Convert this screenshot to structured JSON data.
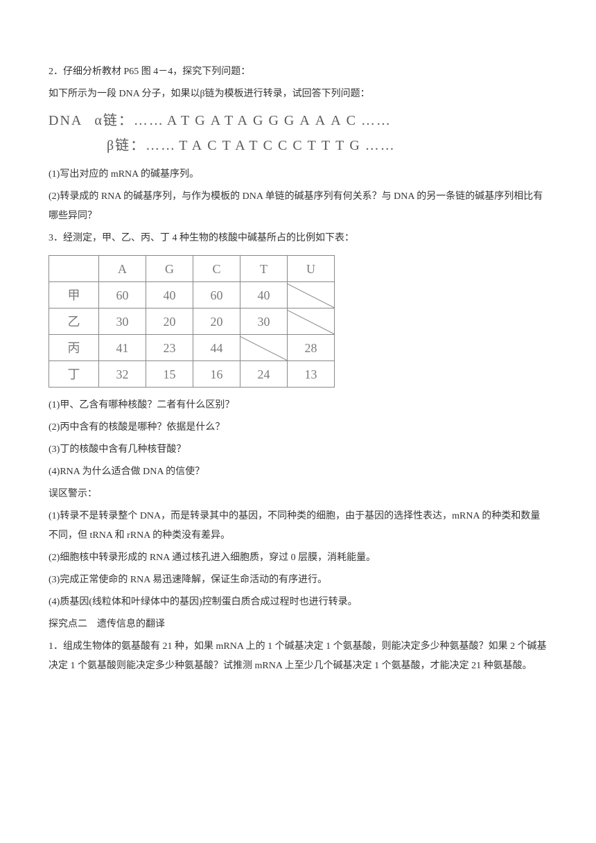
{
  "q2_intro": "2．仔细分析教材 P65 图 4－4，探究下列问题：",
  "q2_line2": "如下所示为一段 DNA 分子，如果以β链为模板进行转录，试回答下列问题：",
  "dna": {
    "label_prefix": "DNA",
    "alpha_label": "α链：……",
    "alpha_seq": "ATGATAGGGAAAC",
    "alpha_suffix": "……",
    "beta_label": "β链：……",
    "beta_seq": "TACTATCCCTTTG",
    "beta_suffix": "……"
  },
  "q2_sub1": "(1)写出对应的 mRNA 的碱基序列。",
  "q2_sub2": "(2)转录成的 RNA 的碱基序列，与作为模板的 DNA 单链的碱基序列有何关系？与 DNA 的另一条链的碱基序列相比有哪些异同？",
  "q3_intro": "3．经测定，甲、乙、丙、丁 4 种生物的核酸中碱基所占的比例如下表：",
  "table": {
    "columns": [
      "",
      "A",
      "G",
      "C",
      "T",
      "U"
    ],
    "rows": [
      {
        "label": "甲",
        "cells": [
          "60",
          "40",
          "60",
          "40",
          null
        ]
      },
      {
        "label": "乙",
        "cells": [
          "30",
          "20",
          "20",
          "30",
          null
        ]
      },
      {
        "label": "丙",
        "cells": [
          "41",
          "23",
          "44",
          null,
          "28"
        ]
      },
      {
        "label": "丁",
        "cells": [
          "32",
          "15",
          "16",
          "24",
          "13"
        ]
      }
    ]
  },
  "q3_sub1": "(1)甲、乙含有哪种核酸？二者有什么区别？",
  "q3_sub2": "(2)丙中含有的核酸是哪种？依据是什么？",
  "q3_sub3": "(3)丁的核酸中含有几种核苷酸？",
  "q3_sub4": "(4)RNA 为什么适合做 DNA 的信使？",
  "warn_title": "误区警示：",
  "warn1": "(1)转录不是转录整个 DNA，而是转录其中的基因，不同种类的细胞，由于基因的选择性表达，mRNA 的种类和数量不同，但 tRNA 和 rRNA 的种类没有差异。",
  "warn2": "(2)细胞核中转录形成的 RNA 通过核孔进入细胞质，穿过 0 层膜，消耗能量。",
  "warn3": "(3)完成正常使命的 RNA 易迅速降解，保证生命活动的有序进行。",
  "warn4": "(4)质基因(线粒体和叶绿体中的基因)控制蛋白质合成过程时也进行转录。",
  "topic2": "探究点二　遗传信息的翻译",
  "topic2_q1": "1．组成生物体的氨基酸有 21 种，如果 mRNA 上的 1 个碱基决定 1 个氨基酸，则能决定多少种氨基酸？如果 2 个碱基决定 1 个氨基酸则能决定多少种氨基酸？试推测 mRNA 上至少几个碱基决定 1 个氨基酸，才能决定 21 种氨基酸。"
}
